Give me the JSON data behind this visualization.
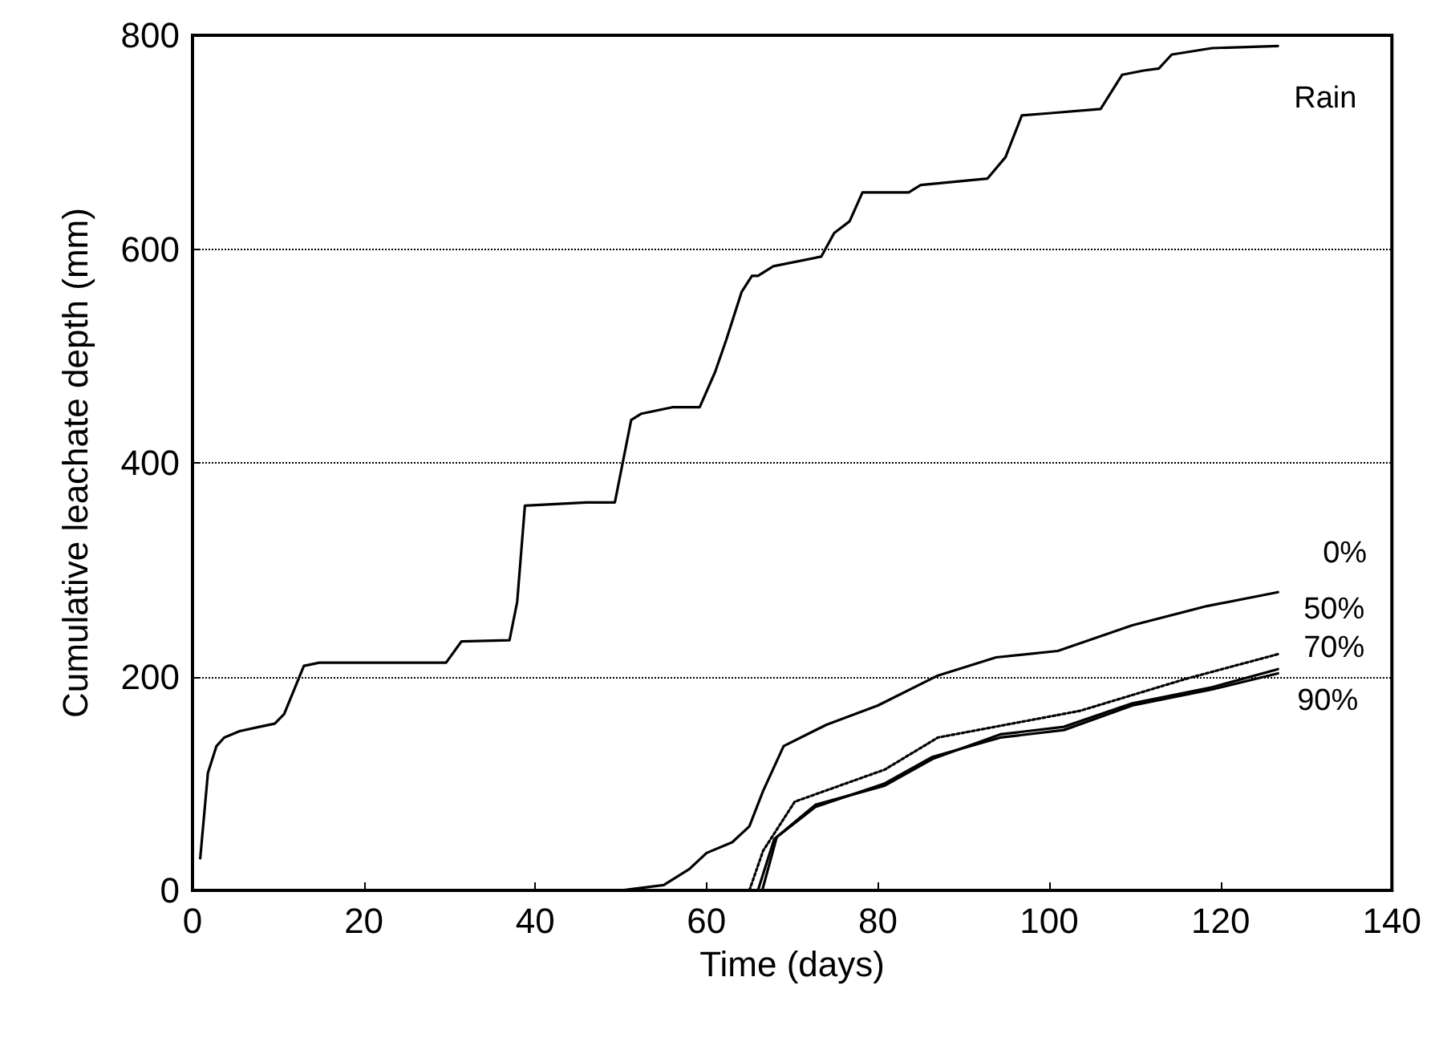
{
  "chart_data": {
    "type": "line",
    "xlabel": "Time (days)",
    "ylabel": "Cumulative leachate depth (mm)",
    "xlim": [
      0,
      140
    ],
    "xticks": [
      0,
      20,
      40,
      60,
      80,
      100,
      120,
      140
    ],
    "ylim": [
      0,
      800
    ],
    "yticks": [
      0,
      200,
      400,
      600,
      800
    ],
    "grid": "y",
    "marker": "none",
    "series": [
      {
        "name": "Rain",
        "color": "#000000",
        "x": [
          0.9,
          1.8,
          2.8,
          3.7,
          5.5,
          7.8,
          9.6,
          10.7,
          13,
          14.8,
          29.6,
          31.4,
          37,
          37.9,
          38.8,
          46,
          49.3,
          51.2,
          52.4,
          56,
          59.2,
          61,
          62.3,
          64.1,
          65.3,
          66,
          67.8,
          73.4,
          74.9,
          76.7,
          78.2,
          83.6,
          85,
          92.8,
          94.9,
          96.8,
          99.9,
          106,
          108.5,
          111,
          112.8,
          114.3,
          119,
          126.7
        ],
        "values": [
          30,
          110,
          135,
          143,
          149,
          153,
          156,
          165,
          210,
          213,
          213,
          233,
          234,
          270,
          360,
          363,
          363,
          440,
          446,
          452,
          452,
          485,
          515,
          560,
          575,
          575,
          584,
          593,
          615,
          626,
          653,
          653,
          660,
          666,
          686,
          725,
          727,
          731,
          763,
          767,
          769,
          782,
          788,
          790
        ]
      },
      {
        "name": "0%",
        "color": "#000000",
        "x": [
          50,
          55,
          58,
          60,
          63,
          65,
          66.6,
          69,
          74,
          80,
          87,
          93.8,
          101,
          109.7,
          118.4,
          126.7
        ],
        "values": [
          0,
          5,
          20,
          35,
          45,
          60,
          93,
          135,
          155,
          173,
          201,
          218,
          224,
          248,
          266,
          279
        ]
      },
      {
        "name": "50%",
        "color": "#000000",
        "line_style": "dotted",
        "x": [
          65,
          66.6,
          70.3,
          80.8,
          87,
          103.6,
          116,
          126.7
        ],
        "values": [
          0,
          37,
          83,
          113,
          143,
          168,
          198,
          221
        ]
      },
      {
        "name": "70%",
        "color": "#000000",
        "x": [
          66.5,
          68.2,
          72.7,
          80.8,
          86.4,
          94.3,
          101.7,
          109.7,
          119,
          126.7
        ],
        "values": [
          0,
          50,
          80,
          98,
          123,
          146,
          153,
          175,
          190,
          207
        ]
      },
      {
        "name": "90%",
        "color": "#000000",
        "x": [
          66,
          67.9,
          72.7,
          80.8,
          86.4,
          94.3,
          101.7,
          109.7,
          119,
          126.7
        ],
        "values": [
          0,
          48,
          78,
          100,
          125,
          143,
          150,
          173,
          188,
          203
        ]
      }
    ]
  }
}
